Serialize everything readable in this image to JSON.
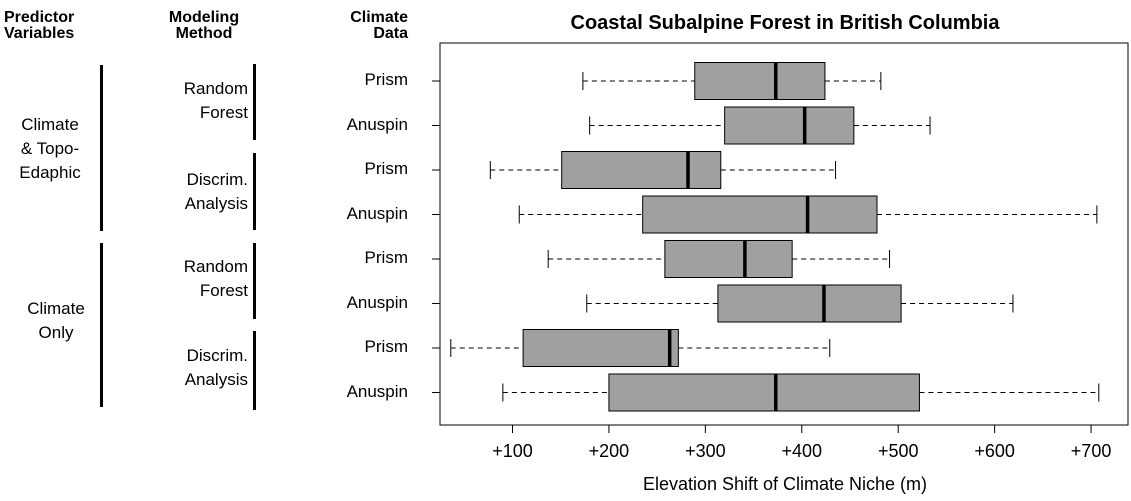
{
  "headers": {
    "predictor": [
      "Predictor",
      "Variables"
    ],
    "method": [
      "Modeling",
      "Method"
    ],
    "climate": [
      "Climate",
      "Data"
    ]
  },
  "predictor_groups": [
    {
      "lines": [
        "Climate",
        "& Topo-",
        "Edaphic"
      ]
    },
    {
      "lines": [
        "Climate",
        "Only"
      ]
    }
  ],
  "method_groups": [
    {
      "lines": [
        "Random",
        "Forest"
      ]
    },
    {
      "lines": [
        "Discrim.",
        "Analysis"
      ]
    },
    {
      "lines": [
        "Random",
        "Forest"
      ]
    },
    {
      "lines": [
        "Discrim.",
        "Analysis"
      ]
    }
  ],
  "chart_data": {
    "type": "boxplot",
    "orientation": "horizontal",
    "title": "Coastal Subalpine Forest in British Columbia",
    "xlabel": "Elevation Shift of Climate Niche (m)",
    "xlim": [
      30,
      730
    ],
    "xticks": [
      100,
      200,
      300,
      400,
      500,
      600,
      700
    ],
    "xtick_labels": [
      "+100",
      "+200",
      "+300",
      "+400",
      "+500",
      "+600",
      "+700"
    ],
    "categories": [
      "Prism",
      "Anuspin",
      "Prism",
      "Anuspin",
      "Prism",
      "Anuspin",
      "Prism",
      "Anuspin"
    ],
    "box_color": "#a0a0a0",
    "boxes": [
      {
        "whisker_low": 173,
        "q1": 289,
        "median": 373,
        "q3": 424,
        "whisker_high": 482
      },
      {
        "whisker_low": 180,
        "q1": 320,
        "median": 403,
        "q3": 454,
        "whisker_high": 533
      },
      {
        "whisker_low": 77,
        "q1": 151,
        "median": 282,
        "q3": 316,
        "whisker_high": 435
      },
      {
        "whisker_low": 107,
        "q1": 235,
        "median": 406,
        "q3": 478,
        "whisker_high": 706
      },
      {
        "whisker_low": 137,
        "q1": 258,
        "median": 341,
        "q3": 390,
        "whisker_high": 491
      },
      {
        "whisker_low": 177,
        "q1": 313,
        "median": 423,
        "q3": 503,
        "whisker_high": 619
      },
      {
        "whisker_low": 36,
        "q1": 111,
        "median": 263,
        "q3": 272,
        "whisker_high": 429
      },
      {
        "whisker_low": 90,
        "q1": 200,
        "median": 373,
        "q3": 522,
        "whisker_high": 708
      }
    ]
  }
}
